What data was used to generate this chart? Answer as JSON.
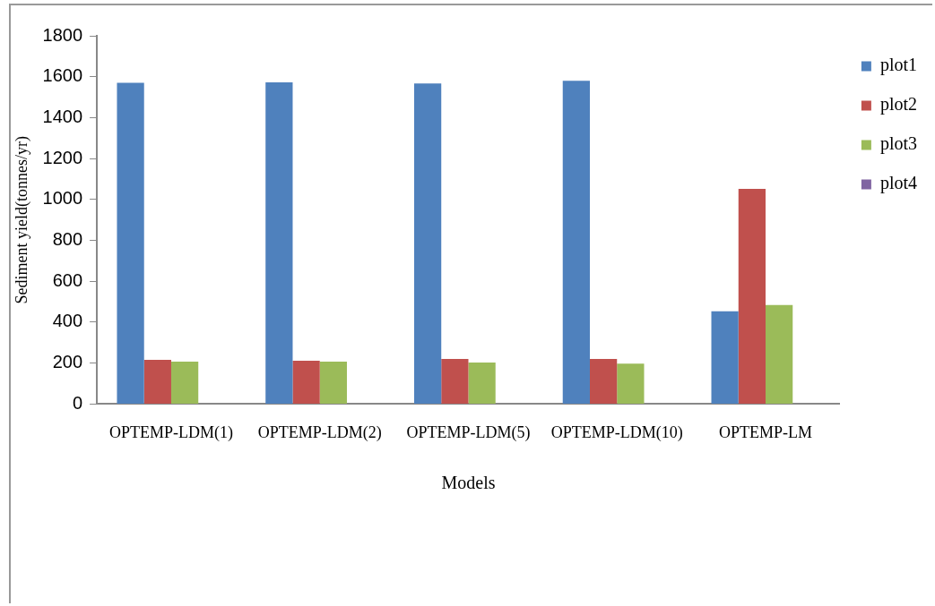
{
  "chart_data": {
    "type": "bar",
    "xlabel": "Models",
    "ylabel": "Sediment yield(tonnes/yr)",
    "categories": [
      "OPTEMP-LDM(1)",
      "OPTEMP-LDM(2)",
      "OPTEMP-LDM(5)",
      "OPTEMP-LDM(10)",
      "OPTEMP-LM"
    ],
    "series": [
      {
        "name": "plot1",
        "color": "#4f81bd",
        "values": [
          1570,
          1572,
          1567,
          1580,
          453
        ]
      },
      {
        "name": "plot2",
        "color": "#c0504d",
        "values": [
          216,
          212,
          220,
          220,
          1052
        ]
      },
      {
        "name": "plot3",
        "color": "#9bbb59",
        "values": [
          207,
          207,
          203,
          198,
          484
        ]
      },
      {
        "name": "plot4",
        "color": "#8064a2",
        "values": [
          null,
          null,
          null,
          null,
          null
        ]
      }
    ],
    "ylim": [
      0,
      1800
    ],
    "yticks": [
      0,
      200,
      400,
      600,
      800,
      1000,
      1200,
      1400,
      1600,
      1800
    ],
    "grid": false,
    "legend": "top right"
  }
}
